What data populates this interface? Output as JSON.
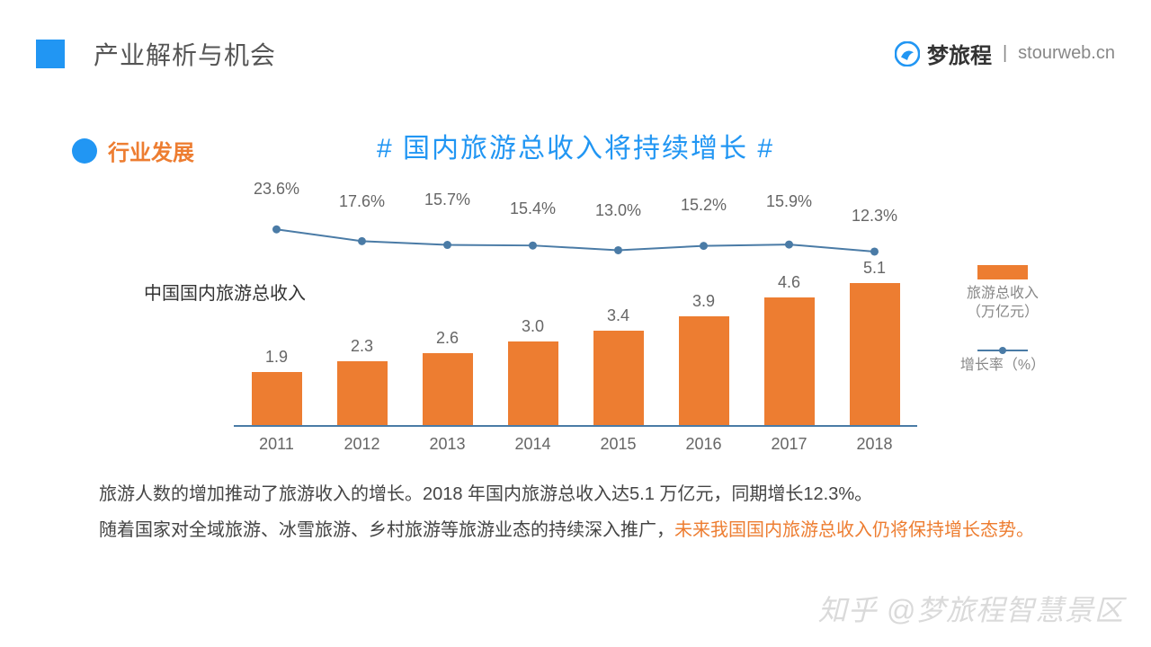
{
  "header": {
    "title": "产业解析与机会",
    "square_color": "#2196f3"
  },
  "brand": {
    "name": "梦旅程",
    "url": "stourweb.cn",
    "logo_color_blue": "#2196f3"
  },
  "section": {
    "dot_color": "#2196f3",
    "label": "行业发展",
    "label_color": "#ed7d31"
  },
  "hashtag": {
    "text": "# 国内旅游总收入将持续增长 #",
    "color": "#2196f3",
    "fontsize": 30
  },
  "chart": {
    "type": "bar+line",
    "y_axis_title": "中国国内旅游总收入",
    "categories": [
      "2011",
      "2012",
      "2013",
      "2014",
      "2015",
      "2016",
      "2017",
      "2018"
    ],
    "bar_values": [
      1.9,
      2.3,
      2.6,
      3.0,
      3.4,
      3.9,
      4.6,
      5.1
    ],
    "bar_labels": [
      "1.9",
      "2.3",
      "2.6",
      "3.0",
      "3.4",
      "3.9",
      "4.6",
      "5.1"
    ],
    "bar_color": "#ed7d31",
    "bar_max": 5.5,
    "line_values": [
      23.6,
      17.6,
      15.7,
      15.4,
      13.0,
      15.2,
      15.9,
      12.3
    ],
    "line_labels": [
      "23.6%",
      "17.6%",
      "15.7%",
      "15.4%",
      "13.0%",
      "15.2%",
      "15.9%",
      "12.3%"
    ],
    "line_color": "#4a7ba6",
    "line_marker": "circle",
    "axis_color": "#4a7ba6",
    "label_fontsize": 18,
    "label_color": "#666666",
    "background_color": "#ffffff"
  },
  "legend": {
    "bar_label_l1": "旅游总收入",
    "bar_label_l2": "（万亿元）",
    "line_label": "增长率（%）"
  },
  "desc": {
    "line1_a": "旅游人数的增加推动了旅游收入的增长。2018 年国内旅游总收入达5.1 万亿元，同期增长12.3%。",
    "line2_a": "随着国家对全域旅游、冰雪旅游、乡村旅游等旅游业态的持续深入推广，",
    "line2_hl": "未来我国国内旅游总收入仍将保持增长态势。",
    "hl_color": "#ed7d31",
    "text_color": "#444444",
    "fontsize": 20
  },
  "watermark": "知乎 @梦旅程智慧景区"
}
